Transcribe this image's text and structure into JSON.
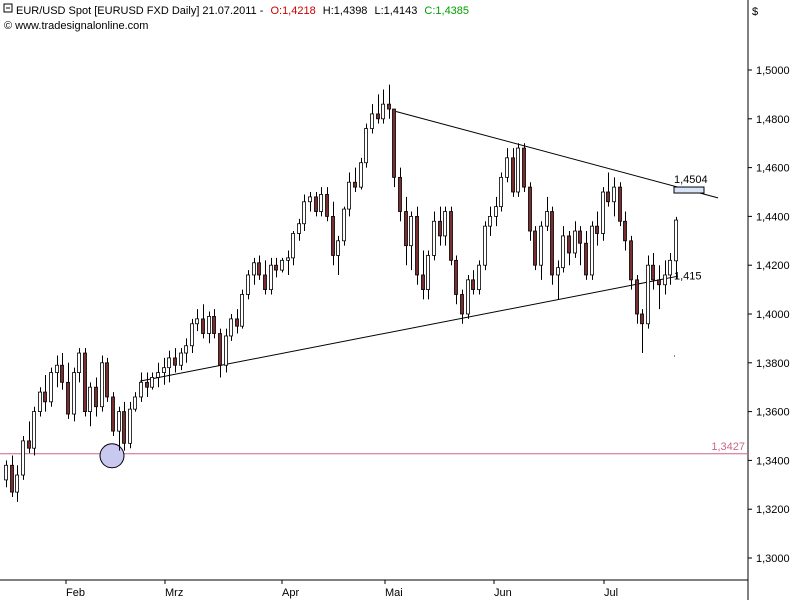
{
  "header": {
    "title": "EUR/USD Spot [EURUSD FXD  Daily] 21.07.2011 -",
    "open": "O:1,4218",
    "high": "H:1,4398",
    "low": "L:1,4143",
    "close": "C:1,4385",
    "website": "www.tradesignalonline.com",
    "currency_symbol": "$"
  },
  "colors": {
    "up_candle": "#ffffff",
    "down_candle": "#7a2e2e",
    "open_text": "#cc0000",
    "close_text": "#00a000",
    "support_line": "#cc6688",
    "axis": "#000000",
    "grid": "#d8d8d8"
  },
  "chart_data": {
    "type": "candlestick",
    "ylim": [
      1.29,
      1.51
    ],
    "y_ticks": [
      "1,3000",
      "1,3200",
      "1,3400",
      "1,3600",
      "1,3800",
      "1,4000",
      "1,4200",
      "1,4400",
      "1,4600",
      "1,4800",
      "1,5000"
    ],
    "month_labels": [
      "Feb",
      "Mrz",
      "Apr",
      "Mai",
      "Jun",
      "Jul"
    ],
    "horizontal_line": {
      "value": 1.3427,
      "label": "1,3427"
    },
    "annotations": [
      {
        "label": "1,4504"
      },
      {
        "label": "1,415"
      }
    ],
    "grid": false,
    "candles": [
      [
        1.332,
        1.34,
        1.329,
        1.338
      ],
      [
        1.338,
        1.342,
        1.325,
        1.327
      ],
      [
        1.327,
        1.338,
        1.323,
        1.334
      ],
      [
        1.334,
        1.35,
        1.332,
        1.348
      ],
      [
        1.348,
        1.356,
        1.343,
        1.345
      ],
      [
        1.345,
        1.362,
        1.342,
        1.36
      ],
      [
        1.36,
        1.37,
        1.358,
        1.368
      ],
      [
        1.368,
        1.375,
        1.36,
        1.364
      ],
      [
        1.364,
        1.378,
        1.362,
        1.376
      ],
      [
        1.376,
        1.383,
        1.37,
        1.379
      ],
      [
        1.379,
        1.384,
        1.369,
        1.372
      ],
      [
        1.372,
        1.38,
        1.357,
        1.359
      ],
      [
        1.359,
        1.378,
        1.356,
        1.376
      ],
      [
        1.376,
        1.386,
        1.372,
        1.384
      ],
      [
        1.384,
        1.386,
        1.358,
        1.36
      ],
      [
        1.36,
        1.372,
        1.354,
        1.37
      ],
      [
        1.37,
        1.374,
        1.358,
        1.362
      ],
      [
        1.362,
        1.383,
        1.36,
        1.38
      ],
      [
        1.38,
        1.382,
        1.364,
        1.366
      ],
      [
        1.366,
        1.368,
        1.35,
        1.352
      ],
      [
        1.352,
        1.362,
        1.344,
        1.36
      ],
      [
        1.36,
        1.364,
        1.344,
        1.347
      ],
      [
        1.347,
        1.364,
        1.345,
        1.361
      ],
      [
        1.361,
        1.368,
        1.36,
        1.366
      ],
      [
        1.366,
        1.376,
        1.364,
        1.372
      ],
      [
        1.372,
        1.376,
        1.366,
        1.37
      ],
      [
        1.37,
        1.376,
        1.369,
        1.374
      ],
      [
        1.374,
        1.38,
        1.37,
        1.376
      ],
      [
        1.376,
        1.382,
        1.371,
        1.378
      ],
      [
        1.378,
        1.385,
        1.372,
        1.382
      ],
      [
        1.382,
        1.386,
        1.376,
        1.379
      ],
      [
        1.379,
        1.386,
        1.377,
        1.384
      ],
      [
        1.384,
        1.39,
        1.38,
        1.387
      ],
      [
        1.387,
        1.398,
        1.384,
        1.396
      ],
      [
        1.396,
        1.402,
        1.393,
        1.398
      ],
      [
        1.398,
        1.404,
        1.39,
        1.392
      ],
      [
        1.392,
        1.401,
        1.388,
        1.399
      ],
      [
        1.399,
        1.402,
        1.39,
        1.392
      ],
      [
        1.392,
        1.394,
        1.374,
        1.379
      ],
      [
        1.379,
        1.394,
        1.376,
        1.391
      ],
      [
        1.391,
        1.4,
        1.389,
        1.398
      ],
      [
        1.398,
        1.402,
        1.392,
        1.395
      ],
      [
        1.395,
        1.41,
        1.394,
        1.408
      ],
      [
        1.408,
        1.418,
        1.406,
        1.416
      ],
      [
        1.416,
        1.423,
        1.412,
        1.421
      ],
      [
        1.421,
        1.424,
        1.414,
        1.416
      ],
      [
        1.416,
        1.422,
        1.408,
        1.41
      ],
      [
        1.41,
        1.423,
        1.408,
        1.42
      ],
      [
        1.42,
        1.423,
        1.415,
        1.418
      ],
      [
        1.418,
        1.423,
        1.417,
        1.422
      ],
      [
        1.422,
        1.426,
        1.416,
        1.423
      ],
      [
        1.423,
        1.434,
        1.42,
        1.433
      ],
      [
        1.433,
        1.439,
        1.43,
        1.437
      ],
      [
        1.437,
        1.449,
        1.434,
        1.446
      ],
      [
        1.446,
        1.45,
        1.442,
        1.448
      ],
      [
        1.448,
        1.45,
        1.44,
        1.442
      ],
      [
        1.442,
        1.452,
        1.44,
        1.449
      ],
      [
        1.449,
        1.452,
        1.438,
        1.44
      ],
      [
        1.44,
        1.446,
        1.42,
        1.424
      ],
      [
        1.424,
        1.432,
        1.416,
        1.43
      ],
      [
        1.43,
        1.444,
        1.428,
        1.443
      ],
      [
        1.443,
        1.458,
        1.44,
        1.454
      ],
      [
        1.454,
        1.46,
        1.45,
        1.452
      ],
      [
        1.452,
        1.464,
        1.451,
        1.462
      ],
      [
        1.462,
        1.478,
        1.46,
        1.476
      ],
      [
        1.476,
        1.486,
        1.474,
        1.482
      ],
      [
        1.482,
        1.49,
        1.478,
        1.48
      ],
      [
        1.48,
        1.492,
        1.478,
        1.486
      ],
      [
        1.486,
        1.494,
        1.48,
        1.484
      ],
      [
        1.484,
        1.484,
        1.452,
        1.456
      ],
      [
        1.456,
        1.46,
        1.438,
        1.442
      ],
      [
        1.442,
        1.448,
        1.42,
        1.428
      ],
      [
        1.428,
        1.442,
        1.418,
        1.44
      ],
      [
        1.44,
        1.444,
        1.412,
        1.416
      ],
      [
        1.416,
        1.426,
        1.406,
        1.41
      ],
      [
        1.41,
        1.426,
        1.406,
        1.424
      ],
      [
        1.424,
        1.442,
        1.422,
        1.438
      ],
      [
        1.438,
        1.444,
        1.428,
        1.432
      ],
      [
        1.432,
        1.444,
        1.428,
        1.442
      ],
      [
        1.442,
        1.444,
        1.42,
        1.422
      ],
      [
        1.422,
        1.424,
        1.404,
        1.408
      ],
      [
        1.408,
        1.41,
        1.396,
        1.4
      ],
      [
        1.4,
        1.416,
        1.398,
        1.414
      ],
      [
        1.414,
        1.418,
        1.408,
        1.41
      ],
      [
        1.41,
        1.422,
        1.408,
        1.42
      ],
      [
        1.42,
        1.438,
        1.418,
        1.436
      ],
      [
        1.436,
        1.444,
        1.432,
        1.44
      ],
      [
        1.44,
        1.448,
        1.436,
        1.444
      ],
      [
        1.444,
        1.458,
        1.442,
        1.456
      ],
      [
        1.456,
        1.468,
        1.454,
        1.464
      ],
      [
        1.464,
        1.468,
        1.448,
        1.45
      ],
      [
        1.45,
        1.47,
        1.448,
        1.468
      ],
      [
        1.468,
        1.47,
        1.45,
        1.452
      ],
      [
        1.452,
        1.454,
        1.43,
        1.434
      ],
      [
        1.434,
        1.436,
        1.418,
        1.42
      ],
      [
        1.42,
        1.438,
        1.414,
        1.436
      ],
      [
        1.436,
        1.448,
        1.434,
        1.442
      ],
      [
        1.442,
        1.444,
        1.412,
        1.416
      ],
      [
        1.416,
        1.422,
        1.406,
        1.419
      ],
      [
        1.419,
        1.436,
        1.417,
        1.432
      ],
      [
        1.432,
        1.434,
        1.42,
        1.425
      ],
      [
        1.425,
        1.438,
        1.423,
        1.434
      ],
      [
        1.434,
        1.436,
        1.42,
        1.429
      ],
      [
        1.429,
        1.434,
        1.414,
        1.416
      ],
      [
        1.416,
        1.438,
        1.414,
        1.436
      ],
      [
        1.436,
        1.442,
        1.428,
        1.433
      ],
      [
        1.433,
        1.452,
        1.43,
        1.45
      ],
      [
        1.45,
        1.458,
        1.444,
        1.446
      ],
      [
        1.446,
        1.456,
        1.44,
        1.452
      ],
      [
        1.452,
        1.454,
        1.436,
        1.438
      ],
      [
        1.438,
        1.442,
        1.426,
        1.43
      ],
      [
        1.43,
        1.432,
        1.41,
        1.414
      ],
      [
        1.414,
        1.416,
        1.396,
        1.4
      ],
      [
        1.4,
        1.402,
        1.384,
        1.396
      ],
      [
        1.396,
        1.424,
        1.394,
        1.42
      ],
      [
        1.42,
        1.425,
        1.41,
        1.414
      ],
      [
        1.414,
        1.42,
        1.402,
        1.412
      ],
      [
        1.412,
        1.422,
        1.408,
        1.416
      ],
      [
        1.416,
        1.425,
        1.412,
        1.422
      ],
      [
        1.4218,
        1.4398,
        1.4143,
        1.4385
      ]
    ]
  }
}
